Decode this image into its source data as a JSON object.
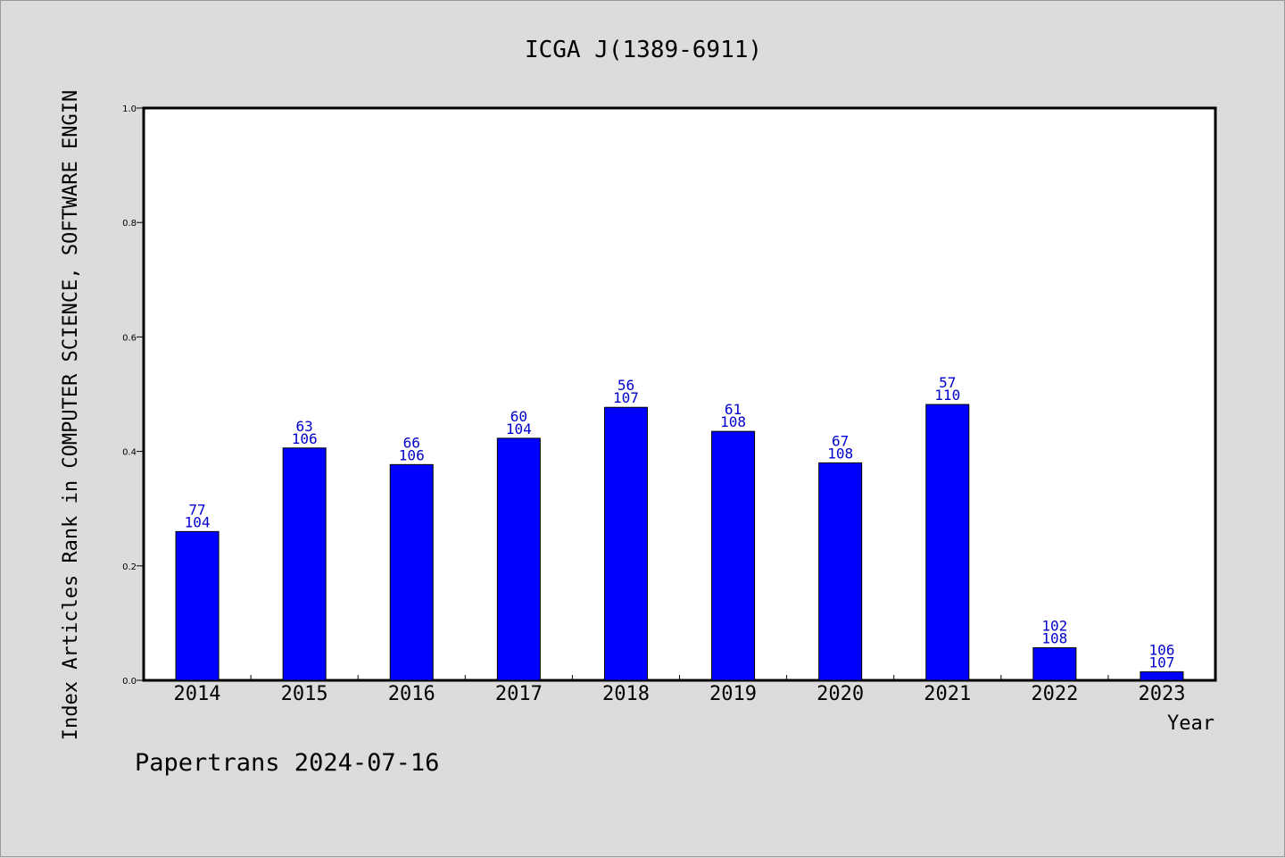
{
  "chart_data": {
    "type": "bar",
    "title": "ICGA J(1389-6911)",
    "xlabel": "Year",
    "ylabel": "Index Articles Rank in COMPUTER SCIENCE, SOFTWARE ENGIN",
    "categories": [
      "2014",
      "2015",
      "2016",
      "2017",
      "2018",
      "2019",
      "2020",
      "2021",
      "2022",
      "2023"
    ],
    "values": [
      0.26,
      0.406,
      0.377,
      0.423,
      0.477,
      0.435,
      0.38,
      0.482,
      0.057,
      0.015
    ],
    "rank": [
      "77",
      "63",
      "66",
      "60",
      "56",
      "61",
      "67",
      "57",
      "102",
      "106"
    ],
    "total": [
      "104",
      "106",
      "106",
      "104",
      "107",
      "108",
      "108",
      "110",
      "108",
      "107"
    ],
    "ylim": [
      0,
      1
    ],
    "yticks": [
      "0.0",
      "0.2",
      "0.4",
      "0.6",
      "0.8",
      "1.0"
    ],
    "grid": false,
    "bar_color": "#0000ff",
    "label_color": "#0000cc",
    "background_color": "#dcdcdc",
    "plot_background": "#ffffff"
  },
  "footer": "Papertrans 2024-07-16"
}
